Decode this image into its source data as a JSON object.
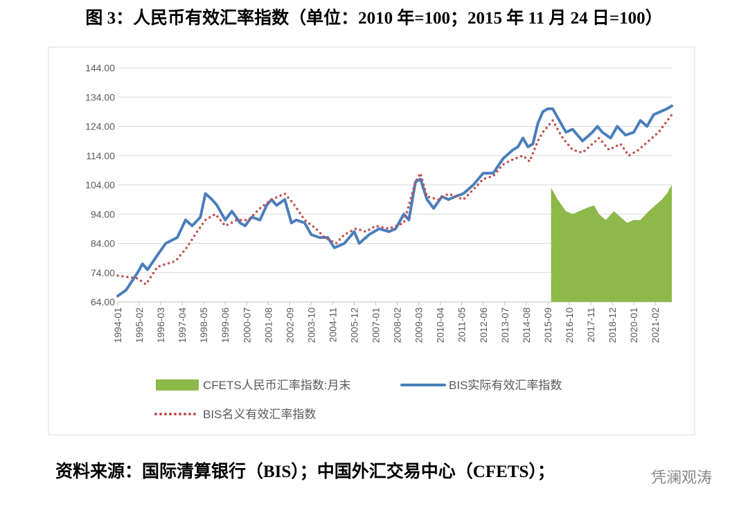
{
  "title": "图 3：人民币有效汇率指数（单位：2010 年=100；2015 年 11 月 24 日=100）",
  "source": "资料来源：国际清算银行（BIS）；中国外汇交易中心（CFETS）；",
  "watermark": "凭澜观涛",
  "chart_data": {
    "type": "line",
    "xlim": [
      "1994-01",
      "2021-12"
    ],
    "xticks": [
      "1994-01",
      "1995-02",
      "1996-03",
      "1997-04",
      "1998-05",
      "1999-06",
      "2000-07",
      "2001-08",
      "2002-09",
      "2003-10",
      "2004-11",
      "2005-12",
      "2007-01",
      "2008-02",
      "2009-03",
      "2010-04",
      "2011-05",
      "2012-06",
      "2013-07",
      "2014-08",
      "2015-09",
      "2016-10",
      "2017-11",
      "2018-12",
      "2020-01",
      "2021-02"
    ],
    "ylim": [
      64,
      144
    ],
    "yticks": [
      {
        "value": 64,
        "label": "64.00"
      },
      {
        "value": 74,
        "label": "74.00"
      },
      {
        "value": 84,
        "label": "84.00"
      },
      {
        "value": 94,
        "label": "94.00"
      },
      {
        "value": 104,
        "label": "104.00"
      },
      {
        "value": 114,
        "label": "114.00"
      },
      {
        "value": 124,
        "label": "124.00"
      },
      {
        "value": 134,
        "label": "134.00"
      },
      {
        "value": 144,
        "label": "144.00"
      }
    ],
    "grid": true,
    "series": [
      {
        "name": "CFETS人民币汇率指数:月末",
        "type": "area",
        "color": "#8db84a",
        "x": [
          "2015-11",
          "2016-03",
          "2016-08",
          "2016-12",
          "2017-04",
          "2017-08",
          "2018-01",
          "2018-04",
          "2018-08",
          "2019-01",
          "2019-05",
          "2019-09",
          "2020-01",
          "2020-05",
          "2020-10",
          "2021-02",
          "2021-06",
          "2021-09",
          "2021-12"
        ],
        "values": [
          103,
          99,
          95,
          94,
          95,
          96,
          97,
          94,
          92,
          95,
          93,
          91,
          92,
          92,
          95,
          97,
          99,
          101,
          104
        ]
      },
      {
        "name": "BIS实际有效汇率指数",
        "type": "line",
        "color": "#4a7ebb",
        "x": [
          "1994-01",
          "1994-06",
          "1995-01",
          "1995-04",
          "1995-07",
          "1996-01",
          "1996-06",
          "1997-01",
          "1997-06",
          "1997-10",
          "1998-03",
          "1998-06",
          "1998-10",
          "1999-01",
          "1999-06",
          "1999-10",
          "2000-03",
          "2000-06",
          "2000-10",
          "2001-03",
          "2001-07",
          "2001-10",
          "2002-01",
          "2002-06",
          "2002-10",
          "2003-01",
          "2003-06",
          "2003-10",
          "2004-03",
          "2004-08",
          "2004-12",
          "2005-06",
          "2005-12",
          "2006-03",
          "2006-09",
          "2007-03",
          "2007-09",
          "2008-01",
          "2008-06",
          "2008-09",
          "2009-01",
          "2009-04",
          "2009-08",
          "2009-12",
          "2010-05",
          "2010-09",
          "2011-01",
          "2011-06",
          "2011-12",
          "2012-06",
          "2012-12",
          "2013-06",
          "2013-12",
          "2014-03",
          "2014-06",
          "2014-09",
          "2014-12",
          "2015-03",
          "2015-06",
          "2015-09",
          "2015-12",
          "2016-04",
          "2016-08",
          "2016-12",
          "2017-06",
          "2017-12",
          "2018-03",
          "2018-06",
          "2018-11",
          "2019-03",
          "2019-08",
          "2020-01",
          "2020-05",
          "2020-09",
          "2021-01",
          "2021-05",
          "2021-09",
          "2021-12"
        ],
        "values": [
          66,
          68,
          74,
          77,
          75,
          80,
          84,
          86,
          92,
          90,
          93,
          101,
          99,
          97,
          92,
          95,
          91,
          90,
          93,
          92,
          97,
          99,
          97,
          99,
          91,
          92,
          91,
          87,
          86,
          86,
          82.5,
          84,
          88,
          84,
          87,
          89,
          88,
          89,
          94,
          92,
          105,
          106,
          99,
          96,
          100,
          99,
          100,
          101,
          104,
          108,
          108,
          113,
          116,
          117,
          120,
          117,
          118,
          125,
          129,
          130,
          130,
          126,
          122,
          123,
          119,
          122,
          124,
          122,
          120,
          124,
          121,
          122,
          126,
          124,
          128,
          129,
          130,
          131
        ]
      },
      {
        "name": "BIS名义有效汇率指数",
        "type": "dotted",
        "color": "#c0504d",
        "x": [
          "1994-01",
          "1995-01",
          "1995-06",
          "1996-01",
          "1996-12",
          "1997-06",
          "1998-01",
          "1998-06",
          "1998-12",
          "1999-06",
          "2000-01",
          "2000-08",
          "2001-03",
          "2001-10",
          "2002-06",
          "2002-12",
          "2003-06",
          "2004-01",
          "2004-06",
          "2005-01",
          "2005-06",
          "2006-01",
          "2006-07",
          "2007-01",
          "2007-09",
          "2008-06",
          "2009-01",
          "2009-04",
          "2009-08",
          "2010-03",
          "2010-09",
          "2011-06",
          "2012-01",
          "2012-06",
          "2012-12",
          "2013-06",
          "2014-01",
          "2014-06",
          "2014-10",
          "2015-03",
          "2015-06",
          "2015-12",
          "2016-06",
          "2016-12",
          "2017-06",
          "2017-12",
          "2018-04",
          "2018-10",
          "2019-05",
          "2019-10",
          "2020-04",
          "2020-10",
          "2021-04",
          "2021-12"
        ],
        "values": [
          73,
          72,
          70,
          76,
          78,
          82,
          88,
          92,
          94,
          90,
          92,
          92,
          96,
          99,
          101,
          97,
          92,
          89,
          86,
          84,
          87,
          89,
          88,
          90,
          89,
          91,
          105,
          108,
          100,
          99,
          101,
          99,
          103,
          106,
          107,
          111,
          113,
          114,
          112,
          119,
          122,
          126,
          120,
          116,
          115,
          118,
          120,
          116,
          118,
          114,
          116,
          119,
          122,
          128
        ]
      }
    ]
  }
}
